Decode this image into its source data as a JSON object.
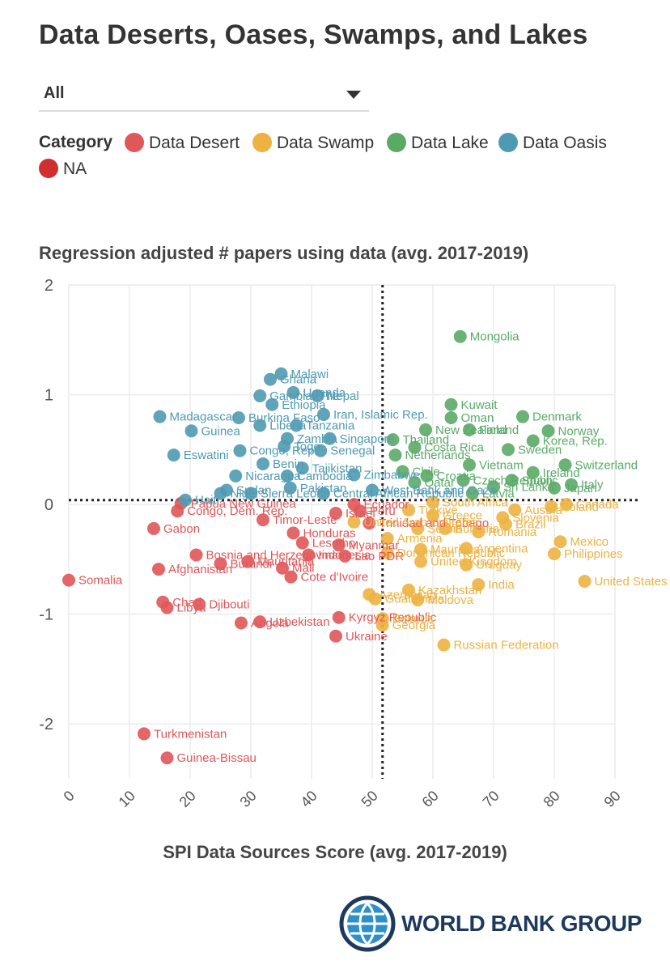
{
  "title": "Data Deserts, Oases, Swamps, and Lakes",
  "filter": {
    "selected": "All"
  },
  "legend": {
    "title": "Category",
    "items": [
      {
        "label": "Data Desert",
        "color": "#e05759"
      },
      {
        "label": "Data Swamp",
        "color": "#edb240"
      },
      {
        "label": "Data Lake",
        "color": "#5aaa67"
      },
      {
        "label": "Data Oasis",
        "color": "#4f9ab3"
      },
      {
        "label": "NA",
        "color": "#d12f2f"
      }
    ]
  },
  "logo": {
    "text": "WORLD BANK GROUP"
  },
  "chart_data": {
    "type": "scatter",
    "title": "Regression adjusted # papers using data (avg. 2017-2019)",
    "xlabel": "SPI Data Sources Score (avg. 2017-2019)",
    "ylabel": "Regression adjusted # papers using data (avg. 2017-2019)",
    "xlim": [
      0,
      90
    ],
    "ylim": [
      -2.5,
      2
    ],
    "xticks": [
      "0",
      "10",
      "20",
      "30",
      "40",
      "50",
      "60",
      "70",
      "80",
      "90"
    ],
    "yticks": [
      "2",
      "1",
      "0",
      "-1",
      "-2"
    ],
    "reference_lines": {
      "x": 51.7,
      "y": 0.04
    },
    "colors": {
      "Desert": "#e05759",
      "Swamp": "#edb240",
      "Lake": "#5aaa67",
      "Oasis": "#4f9ab3"
    },
    "points": [
      {
        "name": "Somalia",
        "x": 0.0,
        "y": -0.69,
        "category": "Desert"
      },
      {
        "name": "Gabon",
        "x": 14.0,
        "y": -0.22,
        "category": "Desert"
      },
      {
        "name": "Afghanistan",
        "x": 14.8,
        "y": -0.59,
        "category": "Desert"
      },
      {
        "name": "Chad",
        "x": 15.5,
        "y": -0.89,
        "category": "Desert"
      },
      {
        "name": "Libya",
        "x": 16.2,
        "y": -0.94,
        "category": "Desert"
      },
      {
        "name": "Djibouti",
        "x": 21.5,
        "y": -0.91,
        "category": "Desert"
      },
      {
        "name": "Turkmenistan",
        "x": 12.4,
        "y": -2.09,
        "category": "Desert"
      },
      {
        "name": "Guinea-Bissau",
        "x": 16.2,
        "y": -2.31,
        "category": "Desert"
      },
      {
        "name": "Papua New Guinea",
        "x": 18.5,
        "y": 0.01,
        "category": "Desert"
      },
      {
        "name": "Congo, Dem. Rep.",
        "x": 17.9,
        "y": -0.06,
        "category": "Desert"
      },
      {
        "name": "Bosnia and Herzegovina",
        "x": 21.0,
        "y": -0.46,
        "category": "Desert"
      },
      {
        "name": "Burundi",
        "x": 25.0,
        "y": -0.54,
        "category": "Desert"
      },
      {
        "name": "Mauritania",
        "x": 29.5,
        "y": -0.52,
        "category": "Desert"
      },
      {
        "name": "Angola",
        "x": 28.4,
        "y": -1.08,
        "category": "Desert"
      },
      {
        "name": "Uzbekistan",
        "x": 31.5,
        "y": -1.07,
        "category": "Desert"
      },
      {
        "name": "Mali",
        "x": 35.2,
        "y": -0.58,
        "category": "Desert"
      },
      {
        "name": "Cote d'Ivoire",
        "x": 36.6,
        "y": -0.66,
        "category": "Desert"
      },
      {
        "name": "Timor-Leste",
        "x": 32.0,
        "y": -0.14,
        "category": "Desert"
      },
      {
        "name": "Honduras",
        "x": 37.0,
        "y": -0.26,
        "category": "Desert"
      },
      {
        "name": "Lesotho",
        "x": 38.5,
        "y": -0.35,
        "category": "Desert"
      },
      {
        "name": "Indonesia",
        "x": 39.5,
        "y": -0.46,
        "category": "Desert"
      },
      {
        "name": "Myanmar",
        "x": 44.5,
        "y": -0.37,
        "category": "Desert"
      },
      {
        "name": "Lao PDR",
        "x": 45.5,
        "y": -0.47,
        "category": "Desert"
      },
      {
        "name": "Israel",
        "x": 44.0,
        "y": -0.08,
        "category": "Desert"
      },
      {
        "name": "Ecuador",
        "x": 47.0,
        "y": 0.0,
        "category": "Desert"
      },
      {
        "name": "Peru",
        "x": 48.0,
        "y": -0.06,
        "category": "Desert"
      },
      {
        "name": "Trinidad and Tobago",
        "x": 49.5,
        "y": -0.17,
        "category": "Desert"
      },
      {
        "name": "Ukraine",
        "x": 44.0,
        "y": -1.2,
        "category": "Desert"
      },
      {
        "name": "Kyrgyz Republic",
        "x": 44.5,
        "y": -1.03,
        "category": "Desert"
      },
      {
        "name": "Mongolia",
        "x": 64.5,
        "y": 1.53,
        "category": "Lake"
      },
      {
        "name": "Kuwait",
        "x": 63.0,
        "y": 0.91,
        "category": "Lake"
      },
      {
        "name": "Oman",
        "x": 63.0,
        "y": 0.79,
        "category": "Lake"
      },
      {
        "name": "Denmark",
        "x": 74.8,
        "y": 0.8,
        "category": "Lake"
      },
      {
        "name": "Norway",
        "x": 79.0,
        "y": 0.67,
        "category": "Lake"
      },
      {
        "name": "Thailand",
        "x": 53.4,
        "y": 0.59,
        "category": "Lake"
      },
      {
        "name": "New Zealand",
        "x": 58.8,
        "y": 0.68,
        "category": "Lake"
      },
      {
        "name": "Finland",
        "x": 66.0,
        "y": 0.68,
        "category": "Lake"
      },
      {
        "name": "Korea, Rep.",
        "x": 76.5,
        "y": 0.58,
        "category": "Lake"
      },
      {
        "name": "Sweden",
        "x": 72.4,
        "y": 0.5,
        "category": "Lake"
      },
      {
        "name": "Costa Rica",
        "x": 57.0,
        "y": 0.52,
        "category": "Lake"
      },
      {
        "name": "Netherlands",
        "x": 53.8,
        "y": 0.45,
        "category": "Lake"
      },
      {
        "name": "Vietnam",
        "x": 66.0,
        "y": 0.36,
        "category": "Lake"
      },
      {
        "name": "Switzerland",
        "x": 81.8,
        "y": 0.36,
        "category": "Lake"
      },
      {
        "name": "Ireland",
        "x": 76.5,
        "y": 0.29,
        "category": "Lake"
      },
      {
        "name": "Italy",
        "x": 82.8,
        "y": 0.18,
        "category": "Lake"
      },
      {
        "name": "Spain",
        "x": 73.0,
        "y": 0.22,
        "category": "Lake"
      },
      {
        "name": "Czech Republic",
        "x": 65.0,
        "y": 0.22,
        "category": "Lake"
      },
      {
        "name": "Sri Lanka",
        "x": 70.0,
        "y": 0.16,
        "category": "Lake"
      },
      {
        "name": "Japan",
        "x": 80.0,
        "y": 0.15,
        "category": "Lake"
      },
      {
        "name": "Croatia",
        "x": 59.0,
        "y": 0.26,
        "category": "Lake"
      },
      {
        "name": "Chile",
        "x": 55.0,
        "y": 0.3,
        "category": "Lake"
      },
      {
        "name": "Qatar",
        "x": 57.0,
        "y": 0.2,
        "category": "Lake"
      },
      {
        "name": "Latvia",
        "x": 66.5,
        "y": 0.1,
        "category": "Lake"
      },
      {
        "name": "Malawi",
        "x": 35.0,
        "y": 1.19,
        "category": "Oasis"
      },
      {
        "name": "Ghana",
        "x": 33.2,
        "y": 1.14,
        "category": "Oasis"
      },
      {
        "name": "Uganda",
        "x": 37.0,
        "y": 1.02,
        "category": "Oasis"
      },
      {
        "name": "Gambia, The",
        "x": 31.5,
        "y": 0.99,
        "category": "Oasis"
      },
      {
        "name": "Nepal",
        "x": 41.0,
        "y": 0.99,
        "category": "Oasis"
      },
      {
        "name": "Ethiopia",
        "x": 33.5,
        "y": 0.91,
        "category": "Oasis"
      },
      {
        "name": "Madagascar",
        "x": 15.0,
        "y": 0.8,
        "category": "Oasis"
      },
      {
        "name": "Burkina Faso",
        "x": 28.0,
        "y": 0.79,
        "category": "Oasis"
      },
      {
        "name": "Iran, Islamic Rep.",
        "x": 42.0,
        "y": 0.82,
        "category": "Oasis"
      },
      {
        "name": "Guinea",
        "x": 20.2,
        "y": 0.67,
        "category": "Oasis"
      },
      {
        "name": "Liberia",
        "x": 31.5,
        "y": 0.72,
        "category": "Oasis"
      },
      {
        "name": "Tanzania",
        "x": 37.5,
        "y": 0.72,
        "category": "Oasis"
      },
      {
        "name": "Zambia",
        "x": 36.0,
        "y": 0.6,
        "category": "Oasis"
      },
      {
        "name": "Singapore",
        "x": 43.0,
        "y": 0.6,
        "category": "Oasis"
      },
      {
        "name": "Togo",
        "x": 35.5,
        "y": 0.53,
        "category": "Oasis"
      },
      {
        "name": "Eswatini",
        "x": 17.3,
        "y": 0.45,
        "category": "Oasis"
      },
      {
        "name": "Congo, Rep.",
        "x": 28.2,
        "y": 0.49,
        "category": "Oasis"
      },
      {
        "name": "Senegal",
        "x": 41.5,
        "y": 0.49,
        "category": "Oasis"
      },
      {
        "name": "Benin",
        "x": 32.0,
        "y": 0.37,
        "category": "Oasis"
      },
      {
        "name": "Tajikistan",
        "x": 38.5,
        "y": 0.33,
        "category": "Oasis"
      },
      {
        "name": "Nicaragua",
        "x": 27.5,
        "y": 0.26,
        "category": "Oasis"
      },
      {
        "name": "Cambodia",
        "x": 36.0,
        "y": 0.26,
        "category": "Oasis"
      },
      {
        "name": "Zimbabwe",
        "x": 47.0,
        "y": 0.27,
        "category": "Oasis"
      },
      {
        "name": "Sudan",
        "x": 26.0,
        "y": 0.13,
        "category": "Oasis"
      },
      {
        "name": "Pakistan",
        "x": 36.5,
        "y": 0.15,
        "category": "Oasis"
      },
      {
        "name": "Haiti",
        "x": 19.2,
        "y": 0.04,
        "category": "Oasis"
      },
      {
        "name": "Niger",
        "x": 25.0,
        "y": 0.1,
        "category": "Oasis"
      },
      {
        "name": "Sierra Leone",
        "x": 30.0,
        "y": 0.1,
        "category": "Oasis"
      },
      {
        "name": "Central African Republic",
        "x": 42.0,
        "y": 0.1,
        "category": "Oasis"
      },
      {
        "name": "West Bank and Gaza",
        "x": 50.0,
        "y": 0.13,
        "category": "Oasis"
      },
      {
        "name": "United States",
        "x": 85.0,
        "y": -0.7,
        "category": "Swamp"
      },
      {
        "name": "Mexico",
        "x": 81.0,
        "y": -0.34,
        "category": "Swamp"
      },
      {
        "name": "Philippines",
        "x": 80.0,
        "y": -0.45,
        "category": "Swamp"
      },
      {
        "name": "Canada",
        "x": 82.0,
        "y": 0.0,
        "category": "Swamp"
      },
      {
        "name": "Poland",
        "x": 79.5,
        "y": -0.02,
        "category": "Swamp"
      },
      {
        "name": "Austria",
        "x": 73.5,
        "y": -0.05,
        "category": "Swamp"
      },
      {
        "name": "Slovenia",
        "x": 71.5,
        "y": -0.12,
        "category": "Swamp"
      },
      {
        "name": "Brazil",
        "x": 72.0,
        "y": -0.18,
        "category": "Swamp"
      },
      {
        "name": "India",
        "x": 67.5,
        "y": -0.73,
        "category": "Swamp"
      },
      {
        "name": "Russian Federation",
        "x": 61.8,
        "y": -1.28,
        "category": "Swamp"
      },
      {
        "name": "Moldova",
        "x": 57.5,
        "y": -0.87,
        "category": "Swamp"
      },
      {
        "name": "Kazakhstan",
        "x": 56.0,
        "y": -0.78,
        "category": "Swamp"
      },
      {
        "name": "United Kingdom",
        "x": 58.0,
        "y": -0.52,
        "category": "Swamp"
      },
      {
        "name": "Mauritius",
        "x": 58.0,
        "y": -0.41,
        "category": "Swamp"
      },
      {
        "name": "Romania",
        "x": 67.5,
        "y": -0.25,
        "category": "Swamp"
      },
      {
        "name": "Bulgaria",
        "x": 62.0,
        "y": -0.22,
        "category": "Swamp"
      },
      {
        "name": "Serbia",
        "x": 57.5,
        "y": -0.22,
        "category": "Swamp"
      },
      {
        "name": "Armenia",
        "x": 52.5,
        "y": -0.31,
        "category": "Swamp"
      },
      {
        "name": "Turkiye",
        "x": 56.0,
        "y": -0.05,
        "category": "Swamp"
      },
      {
        "name": "South Africa",
        "x": 60.0,
        "y": 0.02,
        "category": "Swamp"
      },
      {
        "name": "Argentina",
        "x": 65.5,
        "y": -0.4,
        "category": "Swamp"
      },
      {
        "name": "Uruguay",
        "x": 65.5,
        "y": -0.55,
        "category": "Swamp"
      },
      {
        "name": "Greece",
        "x": 60.0,
        "y": -0.1,
        "category": "Swamp"
      },
      {
        "name": "United Arab Emirates",
        "x": 47.0,
        "y": -0.16,
        "category": "Swamp"
      },
      {
        "name": "Azerbaijan",
        "x": 49.5,
        "y": -0.82,
        "category": "Swamp"
      },
      {
        "name": "Guatemala",
        "x": 50.5,
        "y": -0.86,
        "category": "Swamp"
      },
      {
        "name": "Belarus",
        "x": 51.7,
        "y": -1.04,
        "category": "Swamp"
      },
      {
        "name": "Georgia",
        "x": 51.7,
        "y": -1.1,
        "category": "Swamp"
      },
      {
        "name": "Dominican Republic",
        "x": 52.5,
        "y": -0.44,
        "category": "Swamp"
      }
    ]
  }
}
